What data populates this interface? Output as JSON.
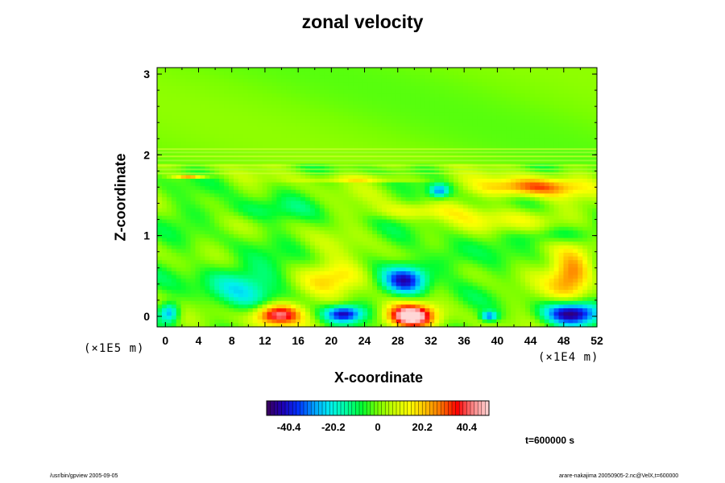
{
  "chart_data": {
    "type": "heatmap",
    "title": "zonal velocity",
    "xlabel": "X-coordinate",
    "ylabel": "Z-coordinate",
    "x_scale_label": "(×1E4 m)",
    "y_scale_label": "(×1E5 m)",
    "xlim": [
      -1,
      52
    ],
    "ylim": [
      -0.13,
      3.08
    ],
    "x_ticks": [
      "0",
      "4",
      "8",
      "12",
      "16",
      "20",
      "24",
      "28",
      "32",
      "36",
      "40",
      "44",
      "48",
      "52"
    ],
    "y_ticks": [
      "0",
      "1",
      "2",
      "3"
    ],
    "colorbar": {
      "range": [
        -50.5,
        50.5
      ],
      "tick_labels": [
        "-40.4",
        "-20.2",
        "0",
        "20.2",
        "40.4"
      ],
      "tick_values": [
        -40.4,
        -20.2,
        0,
        20.2,
        40.4
      ]
    },
    "time_label": "t=600000 s",
    "features": [
      {
        "x": 13.5,
        "z": 0.02,
        "value": 45,
        "sx": 2.8,
        "sz": 0.13
      },
      {
        "x": 29.5,
        "z": 0.0,
        "value": 55,
        "sx": 2.8,
        "sz": 0.14
      },
      {
        "x": 21.5,
        "z": 0.03,
        "value": -40,
        "sx": 2.2,
        "sz": 0.1
      },
      {
        "x": 49.0,
        "z": 0.04,
        "value": -45,
        "sx": 3.2,
        "sz": 0.14
      },
      {
        "x": 29.0,
        "z": 0.45,
        "value": -40,
        "sx": 2.6,
        "sz": 0.18
      },
      {
        "x": 8.5,
        "z": 0.4,
        "value": -18,
        "sx": 5.0,
        "sz": 0.3
      },
      {
        "x": 0.5,
        "z": 0.05,
        "value": -30,
        "sx": 1.2,
        "sz": 0.12
      },
      {
        "x": 39.0,
        "z": 0.0,
        "value": -30,
        "sx": 1.0,
        "sz": 0.06
      },
      {
        "x": 49.0,
        "z": 0.52,
        "value": 30,
        "sx": 2.6,
        "sz": 0.3
      },
      {
        "x": 21.0,
        "z": 0.5,
        "value": 18,
        "sx": 4.0,
        "sz": 0.2
      },
      {
        "x": 33.0,
        "z": 1.55,
        "value": -28,
        "sx": 1.2,
        "sz": 0.08
      },
      {
        "x": 44.0,
        "z": 1.6,
        "value": 30,
        "sx": 6.0,
        "sz": 0.12
      },
      {
        "x": 3.0,
        "z": 1.73,
        "value": 28,
        "sx": 2.0,
        "sz": 0.02
      },
      {
        "x": 24.0,
        "z": 1.7,
        "value": 18,
        "sx": 8.0,
        "sz": 0.03
      },
      {
        "x": 30.0,
        "z": 1.3,
        "value": 12,
        "sx": 5.0,
        "sz": 0.1
      },
      {
        "x": 42.0,
        "z": 1.2,
        "value": 14,
        "sx": 6.0,
        "sz": 0.15
      },
      {
        "x": 47.0,
        "z": 1.0,
        "value": -15,
        "sx": 4.0,
        "sz": 0.12
      },
      {
        "x": 10.0,
        "z": 1.3,
        "value": -10,
        "sx": 6.0,
        "sz": 0.15
      },
      {
        "x": 34.0,
        "z": 0.7,
        "value": -12,
        "sx": 3.0,
        "sz": 0.2
      }
    ]
  },
  "footer": {
    "left": "/usr/bin/gpview 2005-09-05",
    "right": "arare-nakajima 20050905-2.nc@VelX,t=600000"
  },
  "palette": [
    "#3a005a",
    "#1e00b4",
    "#0032ff",
    "#00a0ff",
    "#00f0f0",
    "#00ffa0",
    "#00ff30",
    "#78ff00",
    "#c8ff00",
    "#ffff00",
    "#ffc000",
    "#ff7000",
    "#ff0000",
    "#ff8888",
    "#ffd6d6"
  ]
}
